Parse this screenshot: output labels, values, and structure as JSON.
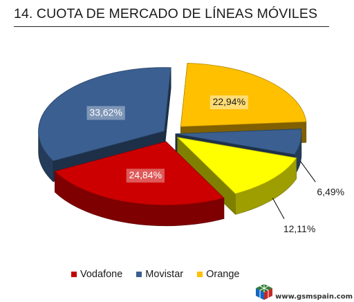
{
  "title": "14. CUOTA DE MERCADO DE LÍNEAS MÓVILES",
  "chart_data": {
    "type": "pie",
    "style": "3d-exploded",
    "slices": [
      {
        "name": "Movistar",
        "value": 33.62,
        "label": "33,62%",
        "color": "#3a5f90"
      },
      {
        "name": "Orange",
        "value": 22.94,
        "label": "22,94%",
        "color": "#ffc000"
      },
      {
        "name": "Movistar",
        "value": 6.49,
        "label": "6,49%",
        "color": "#3a5f90"
      },
      {
        "name": "",
        "value": 12.11,
        "label": "12,11%",
        "color": "#ffff00"
      },
      {
        "name": "Vodafone",
        "value": 24.84,
        "label": "24,84%",
        "color": "#cc0000"
      }
    ],
    "legend": [
      {
        "name": "Vodafone",
        "color": "#c00000"
      },
      {
        "name": "Movistar",
        "color": "#3a5f90"
      },
      {
        "name": "Orange",
        "color": "#ffc000"
      }
    ],
    "legend_position": "bottom"
  },
  "watermark": {
    "text": "www.gsmspain.com",
    "icon": "gsmspain-cube-logo"
  }
}
